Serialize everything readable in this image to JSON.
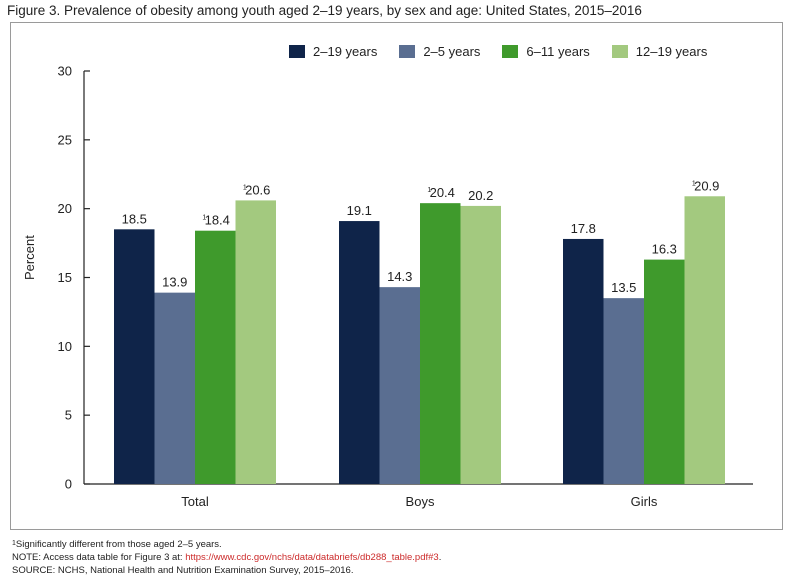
{
  "figure_title": "Figure 3. Prevalence of obesity among youth aged 2–19 years, by sex and age: United States, 2015–2016",
  "notes": {
    "footnote": "Significantly different from those aged 2–5 years.",
    "footnote_marker": "1",
    "note_prefix": "NOTE: Access data table for Figure 3 at: ",
    "note_link": "https://www.cdc.gov/nchs/data/databriefs/db288_table.pdf#3",
    "note_suffix": ".",
    "source": "SOURCE: NCHS, National Health and Nutrition Examination Survey, 2015–2016."
  },
  "chart_data": {
    "type": "bar",
    "title": "",
    "xlabel": "",
    "ylabel": "Percent",
    "ylim": [
      0,
      30
    ],
    "yticks": [
      0,
      5,
      10,
      15,
      20,
      25,
      30
    ],
    "categories": [
      "Total",
      "Boys",
      "Girls"
    ],
    "legend_position": "top-right",
    "grid": false,
    "series": [
      {
        "name": "2–19 years",
        "color": "#0f2449",
        "values": [
          18.5,
          19.1,
          17.8
        ],
        "markers": [
          "",
          "",
          ""
        ]
      },
      {
        "name": "2–5 years",
        "color": "#5a6e91",
        "values": [
          13.9,
          14.3,
          13.5
        ],
        "markers": [
          "",
          "",
          ""
        ]
      },
      {
        "name": "6–11 years",
        "color": "#3f9a2c",
        "values": [
          18.4,
          20.4,
          16.3
        ],
        "markers": [
          "1",
          "1",
          ""
        ]
      },
      {
        "name": "12–19 years",
        "color": "#a3c97f",
        "values": [
          20.6,
          20.2,
          20.9
        ],
        "markers": [
          "1",
          "",
          "1"
        ]
      }
    ]
  }
}
